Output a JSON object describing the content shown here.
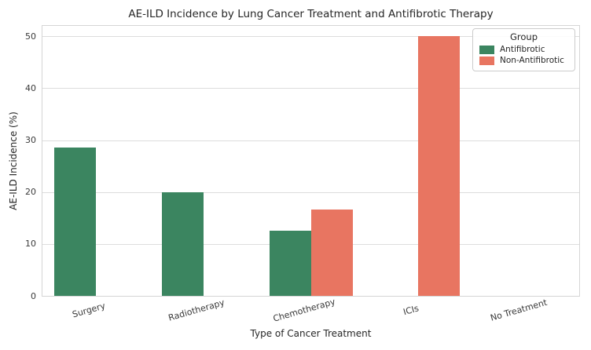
{
  "chart_data": {
    "type": "bar",
    "title": "AE-ILD Incidence by Lung Cancer Treatment and Antifibrotic Therapy",
    "xlabel": "Type of Cancer Treatment",
    "ylabel": "AE-ILD Incidence (%)",
    "categories": [
      "Surgery",
      "Radiotherapy",
      "Chemotherapy",
      "ICIs",
      "No Treatment"
    ],
    "series": [
      {
        "name": "Antifibrotic",
        "color": "#3b8560",
        "values": [
          28.5,
          20,
          12.5,
          null,
          null
        ]
      },
      {
        "name": "Non-Antifibrotic",
        "color": "#e87561",
        "values": [
          null,
          null,
          16.7,
          50,
          null
        ]
      }
    ],
    "yticks": [
      0,
      10,
      20,
      30,
      40,
      50
    ],
    "ylim": [
      0,
      52
    ],
    "grid": true,
    "legend_title": "Group",
    "legend_position": "upper right",
    "colors": {
      "grid": "#dddddd",
      "plot_border": "#d5d5d5",
      "text": "#262626",
      "tick_text": "#3a3a3a"
    }
  }
}
